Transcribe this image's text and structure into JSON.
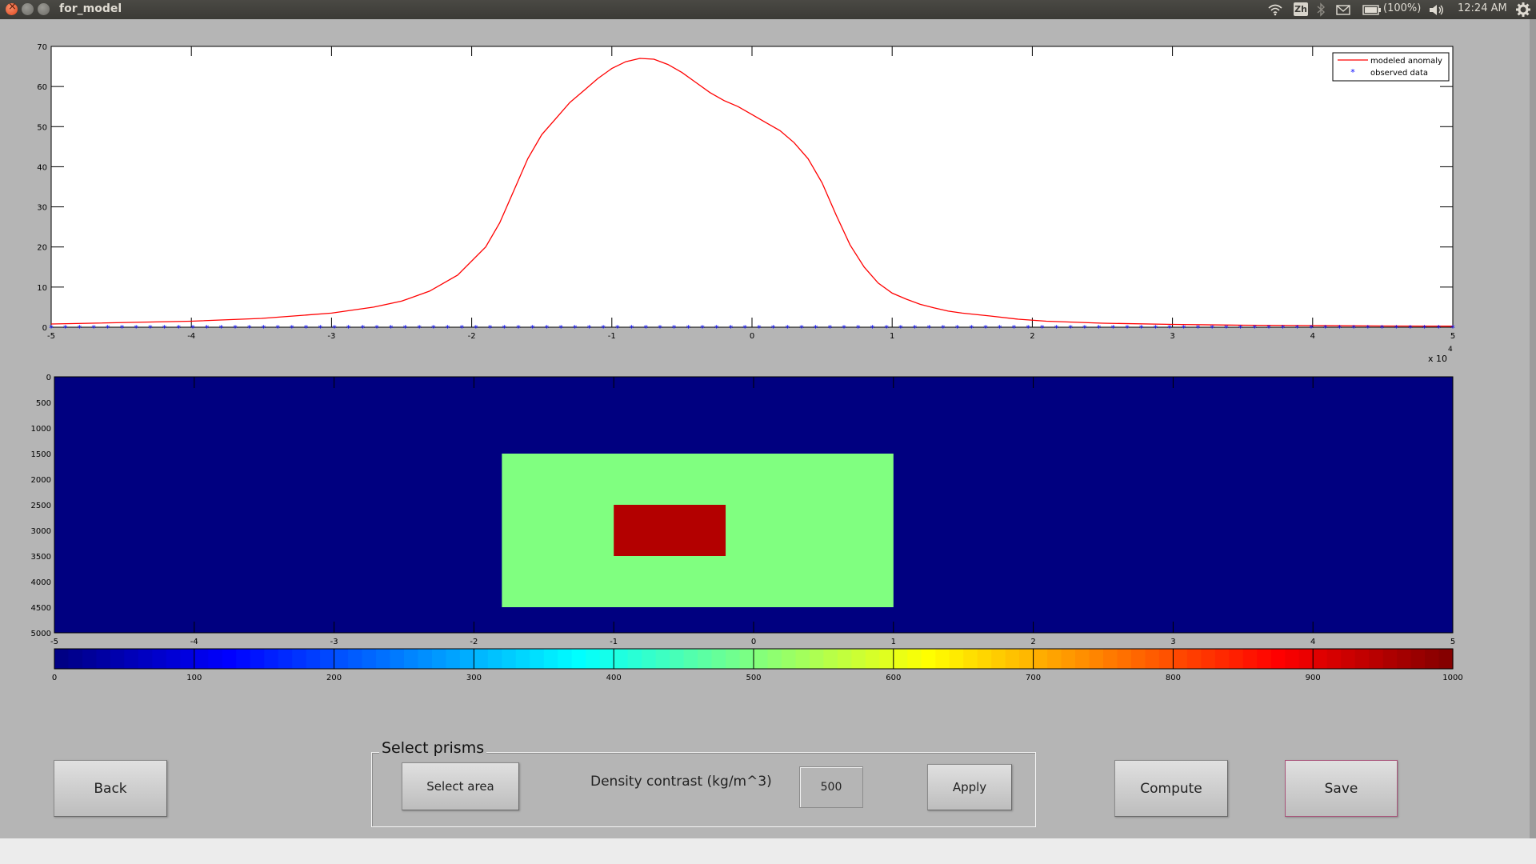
{
  "window": {
    "title": "for_model"
  },
  "system_tray": {
    "input_method": "Zh",
    "battery": "(100%)",
    "clock": "12:24 AM",
    "icons": [
      "wifi-icon",
      "bluetooth-icon",
      "mail-icon",
      "battery-icon",
      "volume-icon",
      "gear-icon"
    ]
  },
  "chart_data": [
    {
      "type": "line",
      "x_multiplier": "x 10",
      "x_multiplier_exponent": "4",
      "xlim": [
        -50000,
        50000
      ],
      "ylim": [
        0,
        70
      ],
      "x_ticks": [
        "-5",
        "-4",
        "-3",
        "-2",
        "-1",
        "0",
        "1",
        "2",
        "3",
        "4",
        "5"
      ],
      "y_ticks": [
        "0",
        "10",
        "20",
        "30",
        "40",
        "50",
        "60",
        "70"
      ],
      "legend": {
        "placement": "top-right",
        "entries": [
          "modeled anomaly",
          "observed data"
        ]
      },
      "series": [
        {
          "name": "modeled anomaly",
          "color": "#ff0000",
          "style": "line",
          "x": [
            -50000,
            -40000,
            -35000,
            -30000,
            -27000,
            -25000,
            -23000,
            -21000,
            -19000,
            -18000,
            -17000,
            -16000,
            -15000,
            -14000,
            -13000,
            -12000,
            -11000,
            -10000,
            -9000,
            -8000,
            -7000,
            -6000,
            -5000,
            -4000,
            -3000,
            -2000,
            -1000,
            0,
            1000,
            2000,
            3000,
            4000,
            5000,
            6000,
            7000,
            8000,
            9000,
            10000,
            11000,
            12000,
            13000,
            14000,
            15000,
            17000,
            19000,
            21000,
            25000,
            30000,
            35000,
            40000,
            45000,
            50000
          ],
          "y": [
            0.8,
            1.5,
            2.2,
            3.5,
            5,
            6.5,
            9,
            13,
            20,
            26,
            34,
            42,
            48,
            52,
            56,
            59,
            62,
            64.5,
            66.2,
            67,
            66.8,
            65.5,
            63.5,
            61,
            58.5,
            56.5,
            55,
            53,
            51,
            49,
            46,
            42,
            36,
            28,
            20.5,
            15,
            11,
            8.5,
            7,
            5.7,
            4.8,
            4,
            3.5,
            2.8,
            2,
            1.5,
            1,
            0.7,
            0.5,
            0.4,
            0.3,
            0.25
          ]
        },
        {
          "name": "observed data",
          "color": "#0000ff",
          "style": "markers",
          "marker": "*",
          "x_start": -50000,
          "x_end": 50000,
          "count": 100,
          "y_value": 0
        }
      ]
    },
    {
      "type": "heatmap",
      "xlim": [
        -50000,
        50000
      ],
      "ylim": [
        0,
        5000
      ],
      "y_reversed": true,
      "x_ticks": [
        "-5",
        "-4",
        "-3",
        "-2",
        "-1",
        "0",
        "1",
        "2",
        "3",
        "4",
        "5"
      ],
      "y_ticks": [
        "0",
        "500",
        "1000",
        "1500",
        "2000",
        "2500",
        "3000",
        "3500",
        "4000",
        "4500",
        "5000"
      ],
      "background_value": 0,
      "prisms": [
        {
          "x": [
            -18000,
            10000
          ],
          "depth": [
            1500,
            4500
          ],
          "value": 500
        },
        {
          "x": [
            -10000,
            -2000
          ],
          "depth": [
            2500,
            3500
          ],
          "value": 950
        }
      ]
    },
    {
      "type": "colorbar",
      "colormap": "jet",
      "range": [
        0,
        1000
      ],
      "steps": 100,
      "tick_labels": [
        "0",
        "100",
        "200",
        "300",
        "400",
        "500",
        "600",
        "700",
        "800",
        "900",
        "1000"
      ]
    }
  ],
  "controls": {
    "back_label": "Back",
    "panel_title": "Select prisms",
    "select_area_label": "Select area",
    "density_label": "Density contrast (kg/m^3)",
    "density_value": "500",
    "apply_label": "Apply",
    "compute_label": "Compute",
    "save_label": "Save"
  }
}
